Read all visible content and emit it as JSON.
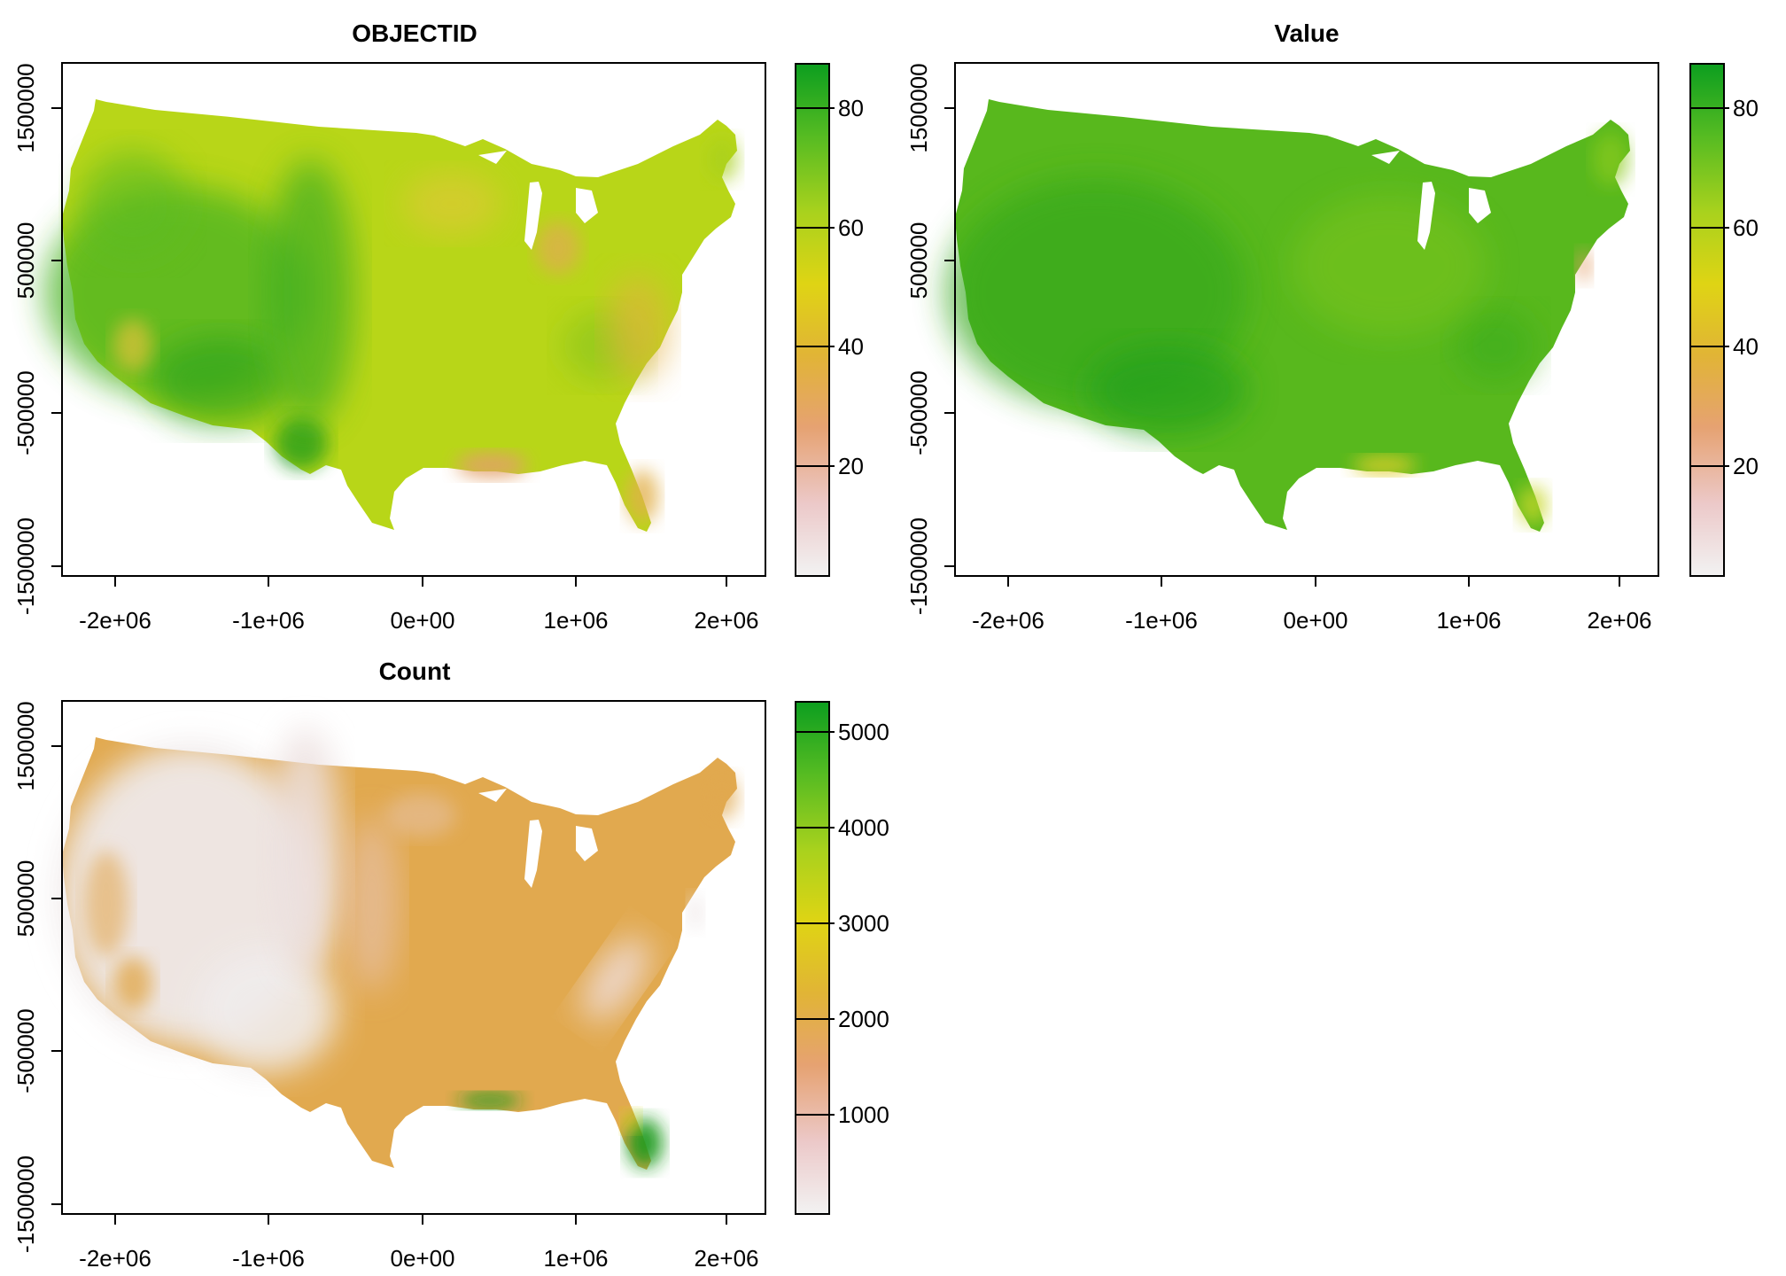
{
  "panels": [
    {
      "id": "objectid",
      "title": "OBJECTID",
      "x_ticks": [
        "-2e+06",
        "-1e+06",
        "0e+00",
        "1e+06",
        "2e+06"
      ],
      "y_ticks": [
        "-1500000",
        "-500000",
        "500000",
        "1500000"
      ],
      "legend_ticks": [
        "20",
        "40",
        "60",
        "80"
      ],
      "legend_range": [
        2,
        88
      ],
      "fill_value": 50,
      "fill_color": "#b9d616"
    },
    {
      "id": "value",
      "title": "Value",
      "x_ticks": [
        "-2e+06",
        "-1e+06",
        "0e+00",
        "1e+06",
        "2e+06"
      ],
      "y_ticks": [
        "-1500000",
        "-500000",
        "500000",
        "1500000"
      ],
      "legend_ticks": [
        "20",
        "40",
        "60",
        "80"
      ],
      "legend_range": [
        2,
        88
      ],
      "fill_value": 68,
      "fill_color": "#57b81c"
    },
    {
      "id": "count",
      "title": "Count",
      "x_ticks": [
        "-2e+06",
        "-1e+06",
        "0e+00",
        "1e+06",
        "2e+06"
      ],
      "y_ticks": [
        "-1500000",
        "-500000",
        "500000",
        "1500000"
      ],
      "legend_ticks": [
        "1000",
        "2000",
        "3000",
        "4000",
        "5000"
      ],
      "legend_range": [
        0,
        5400
      ],
      "fill_value": 1900,
      "fill_color": "#e1a94f"
    }
  ],
  "colors": {
    "ramp": [
      "#f2f2f2",
      "#eccaca",
      "#e6a170",
      "#e2b233",
      "#e0d614",
      "#a7d11c",
      "#55bb22",
      "#0c9e1f"
    ],
    "count_light": "#eee8e8",
    "count_green": "#1d9a1c",
    "value_gulf": "#e0cf2a",
    "objectid_gulf": "#e3a06a"
  }
}
